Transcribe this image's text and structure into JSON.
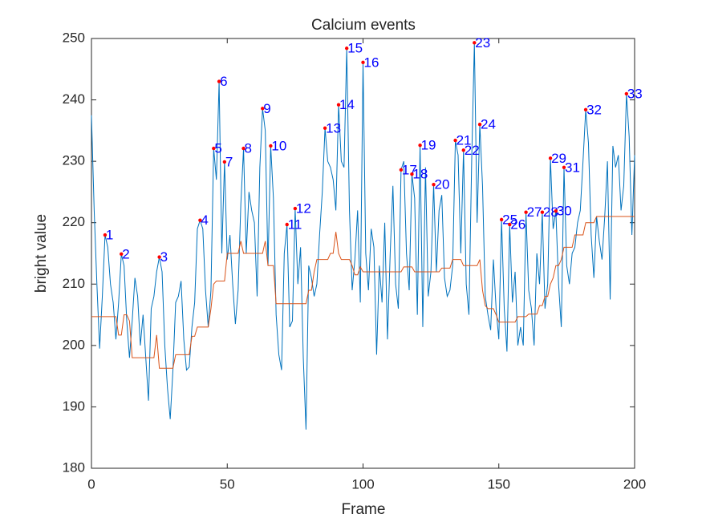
{
  "chart_data": {
    "type": "line",
    "title": "Calcium events",
    "x_label": "Frame",
    "y_label": "bright value",
    "xlim": [
      0,
      200
    ],
    "ylim": [
      180,
      250
    ],
    "xticks": [
      0,
      50,
      100,
      150,
      200
    ],
    "yticks": [
      180,
      190,
      200,
      210,
      220,
      230,
      240,
      250
    ],
    "grid": false,
    "x": [
      0,
      1,
      2,
      3,
      4,
      5,
      6,
      7,
      8,
      9,
      10,
      11,
      12,
      13,
      14,
      15,
      16,
      17,
      18,
      19,
      20,
      21,
      22,
      23,
      24,
      25,
      26,
      27,
      28,
      29,
      30,
      31,
      32,
      33,
      34,
      35,
      36,
      37,
      38,
      39,
      40,
      41,
      42,
      43,
      44,
      45,
      46,
      47,
      48,
      49,
      50,
      51,
      52,
      53,
      54,
      55,
      56,
      57,
      58,
      59,
      60,
      61,
      62,
      63,
      64,
      65,
      66,
      67,
      68,
      69,
      70,
      71,
      72,
      73,
      74,
      75,
      76,
      77,
      78,
      79,
      80,
      81,
      82,
      83,
      84,
      85,
      86,
      87,
      88,
      89,
      90,
      91,
      92,
      93,
      94,
      95,
      96,
      97,
      98,
      99,
      100,
      101,
      102,
      103,
      104,
      105,
      106,
      107,
      108,
      109,
      110,
      111,
      112,
      113,
      114,
      115,
      116,
      117,
      118,
      119,
      120,
      121,
      122,
      123,
      124,
      125,
      126,
      127,
      128,
      129,
      130,
      131,
      132,
      133,
      134,
      135,
      136,
      137,
      138,
      139,
      140,
      141,
      142,
      143,
      144,
      145,
      146,
      147,
      148,
      149,
      150,
      151,
      152,
      153,
      154,
      155,
      156,
      157,
      158,
      159,
      160,
      161,
      162,
      163,
      164,
      165,
      166,
      167,
      168,
      169,
      170,
      171,
      172,
      173,
      174,
      175,
      176,
      177,
      178,
      179,
      180,
      181,
      182,
      183,
      184,
      185,
      186,
      187,
      188,
      189,
      190,
      191,
      192,
      193,
      194,
      195,
      196,
      197,
      198,
      199,
      200
    ],
    "series": [
      {
        "color": "#0072BD",
        "values": [
          237.5,
          222,
          210,
          199.5,
          208,
          218,
          216,
          210,
          207,
          201,
          207,
          214.9,
          213,
          204,
          198,
          204,
          211,
          208,
          200,
          205,
          198,
          191,
          206,
          208,
          212,
          214.4,
          212,
          200,
          193,
          188,
          196,
          207,
          208,
          210.5,
          201,
          196,
          196.5,
          203,
          207,
          219,
          220.4,
          219,
          209,
          203,
          209,
          232.1,
          227,
          243,
          215,
          229.9,
          214,
          218,
          210,
          203.5,
          209,
          223,
          232.1,
          215,
          225,
          222,
          220,
          208,
          229,
          238.6,
          235,
          213,
          232.5,
          224,
          205,
          198.5,
          196,
          215,
          219.7,
          203,
          204,
          222.3,
          210,
          216,
          198,
          186.3,
          213,
          211,
          208,
          210,
          218,
          225,
          235.4,
          230,
          229,
          227,
          222,
          239.2,
          230,
          229,
          248.4,
          222,
          209,
          214,
          222,
          207,
          246.1,
          215,
          209,
          219,
          216,
          198.5,
          213,
          207,
          220,
          201,
          215,
          226,
          210,
          206,
          228.6,
          230,
          215,
          209,
          227.9,
          224,
          205,
          232.6,
          203,
          229,
          208,
          212,
          226.2,
          212,
          222,
          224.5,
          211,
          208,
          209,
          213,
          233.4,
          231,
          215,
          231.8,
          210,
          205,
          230,
          249.3,
          220,
          236,
          226,
          208,
          205,
          202.5,
          214,
          206,
          201,
          220.5,
          206,
          199,
          219.7,
          207,
          212,
          200,
          203,
          200,
          221.7,
          209,
          206,
          200,
          215,
          210,
          221.7,
          206,
          210,
          230.5,
          219,
          221.9,
          210,
          203,
          229,
          213,
          210,
          215,
          216,
          220,
          222,
          230,
          238.4,
          233,
          218,
          211,
          221,
          217,
          214,
          221,
          230,
          207.5,
          232.5,
          229,
          231,
          222,
          226,
          241,
          234,
          218,
          231
        ]
      },
      {
        "color": "#D95319",
        "values": [
          204.7,
          204.7,
          204.7,
          204.7,
          204.7,
          204.7,
          204.7,
          204.7,
          204.7,
          204.7,
          201.7,
          201.7,
          205,
          205,
          204,
          198,
          198,
          198,
          198,
          198,
          198,
          198,
          198,
          198,
          201.7,
          196.3,
          196.3,
          196.3,
          196.3,
          196.3,
          196.3,
          198.5,
          198.5,
          198.5,
          198.5,
          198.5,
          198.5,
          201.5,
          201.5,
          203,
          203,
          203,
          203,
          203,
          206,
          210,
          210.5,
          210.5,
          210.5,
          210.5,
          215,
          215,
          215,
          215,
          215,
          217,
          215,
          215,
          215,
          215,
          215,
          215,
          215,
          215,
          217,
          213,
          213,
          213,
          206.8,
          206.8,
          206.8,
          206.8,
          206.8,
          206.8,
          206.8,
          206.8,
          206.8,
          206.8,
          206.8,
          206.8,
          209,
          209,
          212,
          214,
          214,
          214,
          214,
          214,
          215,
          215,
          218.5,
          215,
          214,
          214,
          214,
          214,
          213,
          211.5,
          211.5,
          212.8,
          212,
          212,
          212,
          212,
          212,
          212,
          212,
          212,
          212,
          212,
          212,
          212,
          212,
          212,
          212,
          212.8,
          212.8,
          212.8,
          212.8,
          212,
          212,
          212,
          212,
          212,
          212,
          212,
          212,
          212,
          212,
          212.6,
          212.6,
          212.6,
          212.6,
          214,
          214,
          214,
          214,
          213,
          213,
          213,
          213,
          213,
          213,
          214,
          209,
          206.5,
          206,
          206,
          206,
          205,
          203.8,
          203.8,
          203.8,
          203.8,
          203.8,
          203.8,
          203.8,
          204.7,
          204.7,
          204.7,
          204.7,
          205.1,
          205.1,
          205.1,
          205.1,
          206.5,
          206.5,
          208,
          208,
          210,
          211,
          213,
          213,
          214,
          216,
          216,
          216,
          216,
          218,
          218,
          218,
          218,
          220,
          220,
          220,
          220,
          221,
          221,
          221,
          221,
          221,
          221,
          221,
          221,
          221,
          221,
          221,
          221,
          221,
          221,
          221
        ]
      }
    ],
    "events": {
      "color": "#ff0000",
      "label_color": "#0000ff",
      "x": [
        5,
        11,
        25,
        40,
        45,
        47,
        49,
        56,
        63,
        66,
        72,
        75,
        86,
        91,
        94,
        100,
        114,
        118,
        121,
        126,
        134,
        137,
        141,
        143,
        151,
        154,
        160,
        166,
        169,
        171,
        174,
        182,
        197
      ],
      "values": [
        218,
        214.9,
        214.4,
        220.4,
        232.1,
        243,
        229.9,
        232.1,
        238.6,
        232.5,
        219.7,
        222.3,
        235.4,
        239.2,
        248.4,
        246.1,
        228.6,
        227.9,
        232.6,
        226.2,
        233.4,
        231.8,
        249.3,
        236,
        220.5,
        219.7,
        221.7,
        221.7,
        230.5,
        221.9,
        229,
        238.4,
        241
      ],
      "labels": [
        "1",
        "2",
        "3",
        "4",
        "5",
        "6",
        "7",
        "8",
        "9",
        "10",
        "11",
        "12",
        "13",
        "14",
        "15",
        "16",
        "17",
        "18",
        "19",
        "20",
        "21",
        "22",
        "23",
        "24",
        "25",
        "26",
        "27",
        "28",
        "29",
        "30",
        "31",
        "32",
        "33"
      ]
    }
  }
}
